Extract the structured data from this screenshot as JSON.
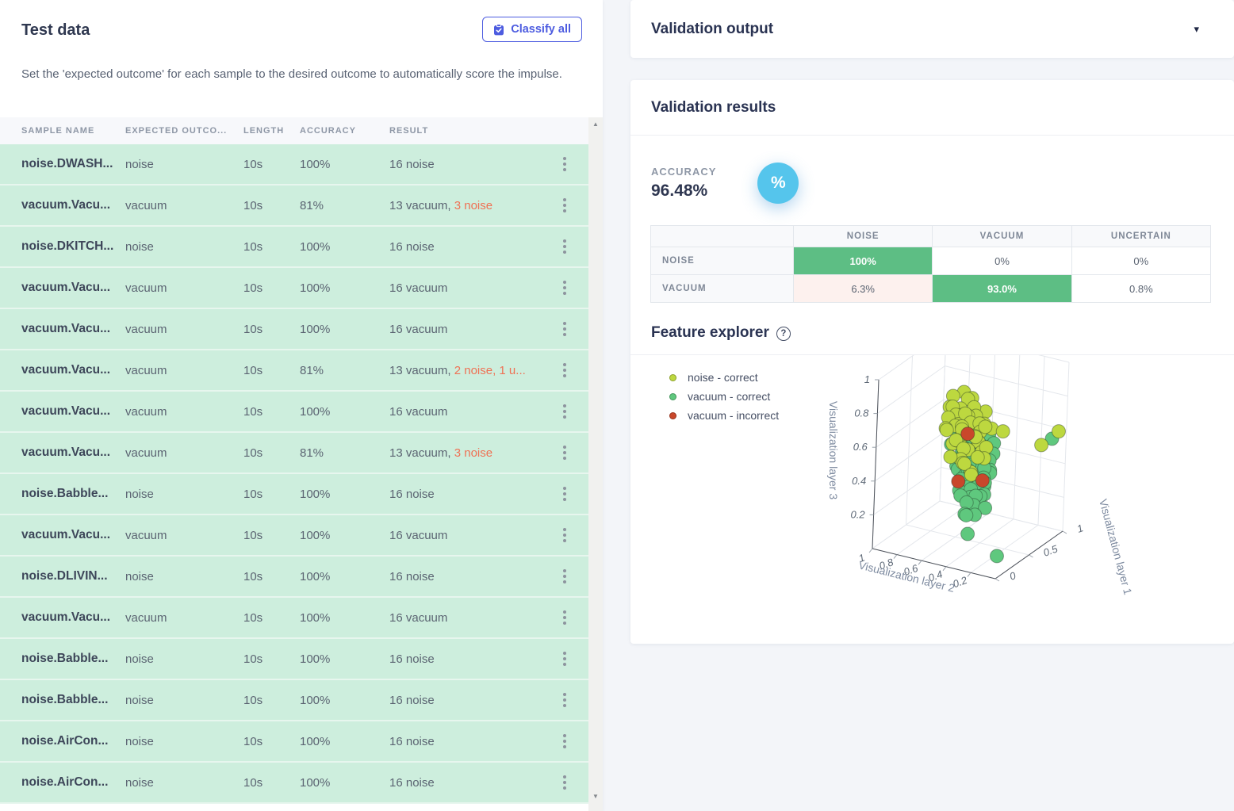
{
  "colors": {
    "page_bg": "#f3f5f9",
    "accent": "#4d5ce0",
    "row_green": "#cdeedd",
    "error_text": "#ef7154",
    "matrix_good": "#5dbe84",
    "matrix_bad_bg": "#fdf1ee",
    "accuracy_circle": "#55c5ec"
  },
  "icons": {
    "classify": "clipboard-check",
    "caret_down": "▾",
    "scroll_up": "▲",
    "scroll_down": "▼",
    "help": "?",
    "percent": "%"
  },
  "left_panel": {
    "title": "Test data",
    "classify_label": "Classify all",
    "description": "Set the 'expected outcome' for each sample to the desired outcome to automatically score the impulse.",
    "table": {
      "headers": [
        "SAMPLE NAME",
        "EXPECTED OUTCO...",
        "LENGTH",
        "ACCURACY",
        "RESULT"
      ],
      "rows": [
        {
          "name": "noise.DWASH...",
          "expected": "noise",
          "length": "10s",
          "accuracy": "100%",
          "result": "16 noise",
          "result_error": ""
        },
        {
          "name": "vacuum.Vacu...",
          "expected": "vacuum",
          "length": "10s",
          "accuracy": "81%",
          "result": "13 vacuum, ",
          "result_error": "3 noise"
        },
        {
          "name": "noise.DKITCH...",
          "expected": "noise",
          "length": "10s",
          "accuracy": "100%",
          "result": "16 noise",
          "result_error": ""
        },
        {
          "name": "vacuum.Vacu...",
          "expected": "vacuum",
          "length": "10s",
          "accuracy": "100%",
          "result": "16 vacuum",
          "result_error": ""
        },
        {
          "name": "vacuum.Vacu...",
          "expected": "vacuum",
          "length": "10s",
          "accuracy": "100%",
          "result": "16 vacuum",
          "result_error": ""
        },
        {
          "name": "vacuum.Vacu...",
          "expected": "vacuum",
          "length": "10s",
          "accuracy": "81%",
          "result": "13 vacuum, ",
          "result_error": "2 noise, 1 u..."
        },
        {
          "name": "vacuum.Vacu...",
          "expected": "vacuum",
          "length": "10s",
          "accuracy": "100%",
          "result": "16 vacuum",
          "result_error": ""
        },
        {
          "name": "vacuum.Vacu...",
          "expected": "vacuum",
          "length": "10s",
          "accuracy": "81%",
          "result": "13 vacuum, ",
          "result_error": "3 noise"
        },
        {
          "name": "noise.Babble...",
          "expected": "noise",
          "length": "10s",
          "accuracy": "100%",
          "result": "16 noise",
          "result_error": ""
        },
        {
          "name": "vacuum.Vacu...",
          "expected": "vacuum",
          "length": "10s",
          "accuracy": "100%",
          "result": "16 vacuum",
          "result_error": ""
        },
        {
          "name": "noise.DLIVIN...",
          "expected": "noise",
          "length": "10s",
          "accuracy": "100%",
          "result": "16 noise",
          "result_error": ""
        },
        {
          "name": "vacuum.Vacu...",
          "expected": "vacuum",
          "length": "10s",
          "accuracy": "100%",
          "result": "16 vacuum",
          "result_error": ""
        },
        {
          "name": "noise.Babble...",
          "expected": "noise",
          "length": "10s",
          "accuracy": "100%",
          "result": "16 noise",
          "result_error": ""
        },
        {
          "name": "noise.Babble...",
          "expected": "noise",
          "length": "10s",
          "accuracy": "100%",
          "result": "16 noise",
          "result_error": ""
        },
        {
          "name": "noise.AirCon...",
          "expected": "noise",
          "length": "10s",
          "accuracy": "100%",
          "result": "16 noise",
          "result_error": ""
        },
        {
          "name": "noise.AirCon...",
          "expected": "noise",
          "length": "10s",
          "accuracy": "100%",
          "result": "16 noise",
          "result_error": ""
        }
      ]
    }
  },
  "right_panel": {
    "validation_output_title": "Validation output",
    "results": {
      "title": "Validation results",
      "accuracy_label": "ACCURACY",
      "accuracy_value": "96.48%",
      "confusion_matrix": {
        "columns": [
          "NOISE",
          "VACUUM",
          "UNCERTAIN"
        ],
        "rows": [
          {
            "label": "NOISE",
            "cells": [
              {
                "text": "100%",
                "type": "good"
              },
              {
                "text": "0%",
                "type": "plain"
              },
              {
                "text": "0%",
                "type": "plain"
              }
            ]
          },
          {
            "label": "VACUUM",
            "cells": [
              {
                "text": "6.3%",
                "type": "bad"
              },
              {
                "text": "93.0%",
                "type": "good"
              },
              {
                "text": "0.8%",
                "type": "plain"
              }
            ]
          }
        ]
      },
      "feature_explorer_title": "Feature explorer"
    }
  },
  "chart_data": {
    "type": "scatter",
    "subtype": "scatter3d",
    "title": "Feature explorer",
    "axes": {
      "x": {
        "label": "Visualization layer 2",
        "range": [
          0,
          1
        ],
        "ticks": [
          1,
          0.8,
          0.6,
          0.4,
          0.2
        ]
      },
      "y": {
        "label": "Visualization layer 1",
        "range": [
          0,
          1
        ],
        "ticks": [
          1,
          0.5,
          0
        ]
      },
      "z": {
        "label": "Visualization layer 3",
        "range": [
          0,
          1
        ],
        "ticks": [
          1,
          0.8,
          0.6,
          0.4,
          0.2
        ]
      }
    },
    "legend_position": "left",
    "grid": true,
    "series": [
      {
        "name": "vacuum - correct",
        "color": "#5fc87e",
        "points": [
          [
            0.48,
            0.5,
            0.72
          ],
          [
            0.42,
            0.45,
            0.7
          ],
          [
            0.55,
            0.58,
            0.68
          ],
          [
            0.38,
            0.52,
            0.67
          ],
          [
            0.5,
            0.4,
            0.66
          ],
          [
            0.45,
            0.6,
            0.65
          ],
          [
            0.58,
            0.48,
            0.64
          ],
          [
            0.35,
            0.44,
            0.64
          ],
          [
            0.52,
            0.54,
            0.63
          ],
          [
            0.46,
            0.38,
            0.62
          ],
          [
            0.4,
            0.58,
            0.62
          ],
          [
            0.62,
            0.52,
            0.61
          ],
          [
            0.48,
            0.46,
            0.6
          ],
          [
            0.55,
            0.62,
            0.6
          ],
          [
            0.33,
            0.5,
            0.59
          ],
          [
            0.44,
            0.42,
            0.58
          ],
          [
            0.58,
            0.56,
            0.58
          ],
          [
            0.04,
            0.86,
            0.58
          ],
          [
            0.5,
            0.5,
            0.57
          ],
          [
            0.38,
            0.62,
            0.56
          ],
          [
            0.63,
            0.44,
            0.56
          ],
          [
            0.46,
            0.55,
            0.55
          ],
          [
            0.52,
            0.4,
            0.54
          ],
          [
            0.42,
            0.48,
            0.54
          ],
          [
            0.57,
            0.52,
            0.53
          ],
          [
            0.35,
            0.56,
            0.52
          ],
          [
            0.48,
            0.62,
            0.52
          ],
          [
            0.54,
            0.46,
            0.51
          ],
          [
            0.44,
            0.52,
            0.5
          ],
          [
            0.6,
            0.58,
            0.5
          ],
          [
            0.38,
            0.42,
            0.49
          ],
          [
            0.5,
            0.56,
            0.48
          ],
          [
            0.46,
            0.44,
            0.48
          ],
          [
            0.56,
            0.5,
            0.47
          ],
          [
            0.4,
            0.6,
            0.46
          ],
          [
            0.52,
            0.52,
            0.46
          ],
          [
            0.33,
            0.48,
            0.45
          ],
          [
            0.47,
            0.58,
            0.44
          ],
          [
            0.58,
            0.44,
            0.44
          ],
          [
            0.43,
            0.5,
            0.43
          ],
          [
            0.54,
            0.56,
            0.42
          ],
          [
            0.49,
            0.44,
            0.42
          ],
          [
            0.36,
            0.54,
            0.41
          ],
          [
            0.6,
            0.5,
            0.4
          ],
          [
            0.45,
            0.62,
            0.4
          ],
          [
            0.52,
            0.46,
            0.39
          ],
          [
            0.4,
            0.52,
            0.38
          ],
          [
            0.56,
            0.58,
            0.38
          ],
          [
            0.48,
            0.5,
            0.37
          ],
          [
            0.35,
            0.44,
            0.36
          ],
          [
            0.53,
            0.54,
            0.36
          ],
          [
            0.44,
            0.46,
            0.35
          ],
          [
            0.58,
            0.52,
            0.34
          ],
          [
            0.42,
            0.58,
            0.33
          ],
          [
            0.5,
            0.48,
            0.32
          ],
          [
            0.46,
            0.54,
            0.31
          ],
          [
            0.55,
            0.44,
            0.3
          ],
          [
            0.38,
            0.5,
            0.29
          ],
          [
            0.52,
            0.56,
            0.28
          ],
          [
            0.47,
            0.46,
            0.27
          ],
          [
            0.43,
            0.54,
            0.26
          ],
          [
            0.57,
            0.5,
            0.25
          ],
          [
            0.49,
            0.58,
            0.24
          ],
          [
            0.45,
            0.48,
            0.22
          ],
          [
            0.53,
            0.52,
            0.21
          ],
          [
            0.4,
            0.56,
            0.19
          ],
          [
            0.5,
            0.44,
            0.17
          ],
          [
            0.46,
            0.52,
            0.15
          ],
          [
            0.55,
            0.56,
            0.12
          ],
          [
            0.48,
            0.46,
            0.05
          ],
          [
            0.1,
            0.2,
            0.06
          ]
        ]
      },
      {
        "name": "noise - correct",
        "color": "#bdd83f",
        "points": [
          [
            0.52,
            0.4,
            0.9
          ],
          [
            0.58,
            0.35,
            0.88
          ],
          [
            0.49,
            0.47,
            0.85
          ],
          [
            0.55,
            0.52,
            0.82
          ],
          [
            0.62,
            0.38,
            0.8
          ],
          [
            0.45,
            0.42,
            0.8
          ],
          [
            0.57,
            0.45,
            0.78
          ],
          [
            0.5,
            0.36,
            0.78
          ],
          [
            0.66,
            0.5,
            0.76
          ],
          [
            0.42,
            0.55,
            0.76
          ],
          [
            0.54,
            0.6,
            0.75
          ],
          [
            0.6,
            0.44,
            0.74
          ],
          [
            0.47,
            0.5,
            0.74
          ],
          [
            0.52,
            0.33,
            0.73
          ],
          [
            0.65,
            0.42,
            0.72
          ],
          [
            0.38,
            0.46,
            0.72
          ],
          [
            0.56,
            0.55,
            0.71
          ],
          [
            0.61,
            0.6,
            0.7
          ],
          [
            0.44,
            0.38,
            0.7
          ],
          [
            0.5,
            0.48,
            0.7
          ],
          [
            0.58,
            0.4,
            0.69
          ],
          [
            0.35,
            0.52,
            0.68
          ],
          [
            0.63,
            0.35,
            0.68
          ],
          [
            0.48,
            0.58,
            0.67
          ],
          [
            0.54,
            0.44,
            0.66
          ],
          [
            0.42,
            0.48,
            0.66
          ],
          [
            0.59,
            0.52,
            0.65
          ],
          [
            0.3,
            0.6,
            0.65
          ],
          [
            0.52,
            0.38,
            0.64
          ],
          [
            0.46,
            0.63,
            0.64
          ],
          [
            0.68,
            0.46,
            0.63
          ],
          [
            0.55,
            0.5,
            0.62
          ],
          [
            0.4,
            0.42,
            0.62
          ],
          [
            0.62,
            0.58,
            0.61
          ],
          [
            0.02,
            0.92,
            0.61
          ],
          [
            0.5,
            0.55,
            0.6
          ],
          [
            0.57,
            0.35,
            0.6
          ],
          [
            0.05,
            0.72,
            0.58
          ],
          [
            0.44,
            0.5,
            0.59
          ],
          [
            0.35,
            0.38,
            0.58
          ],
          [
            0.6,
            0.47,
            0.58
          ],
          [
            0.53,
            0.62,
            0.57
          ],
          [
            0.48,
            0.42,
            0.56
          ],
          [
            0.65,
            0.55,
            0.55
          ],
          [
            0.42,
            0.58,
            0.54
          ],
          [
            0.56,
            0.5,
            0.53
          ],
          [
            0.5,
            0.35,
            0.52
          ],
          [
            0.38,
            0.48,
            0.51
          ],
          [
            0.61,
            0.4,
            0.5
          ],
          [
            0.47,
            0.55,
            0.48
          ],
          [
            0.54,
            0.46,
            0.46
          ],
          [
            0.44,
            0.4,
            0.44
          ],
          [
            0.58,
            0.56,
            0.42
          ],
          [
            0.5,
            0.52,
            0.38
          ]
        ]
      },
      {
        "name": "vacuum - incorrect",
        "color": "#c9472b",
        "points": [
          [
            0.52,
            0.48,
            0.63
          ],
          [
            0.55,
            0.42,
            0.36
          ],
          [
            0.44,
            0.58,
            0.34
          ]
        ]
      }
    ]
  }
}
